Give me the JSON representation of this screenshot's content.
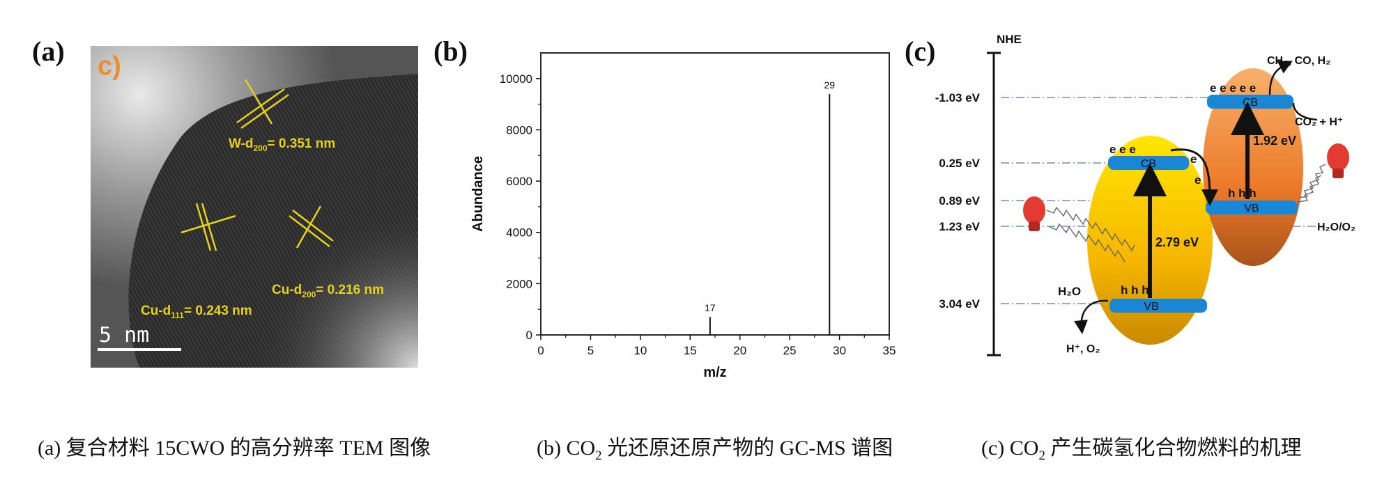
{
  "panels": {
    "a": {
      "letter": "(a)",
      "inset_letter": "c)",
      "annotations": {
        "w_prefix": "W-d",
        "w_sub": "200",
        "w_suffix": "= 0.351 nm",
        "cu111_prefix": "Cu-d",
        "cu111_sub": "111",
        "cu111_suffix": "= 0.243 nm",
        "cu200_prefix": "Cu-d",
        "cu200_sub": "200",
        "cu200_suffix": "= 0.216 nm"
      },
      "scale_bar": "5 nm"
    },
    "b": {
      "letter": "(b)"
    },
    "c": {
      "letter": "(c)",
      "axis_label": "NHE",
      "levels": [
        "-1.03 eV",
        "0.25 eV",
        "0.89 eV",
        "1.23 eV",
        "3.04 eV"
      ],
      "redox_label": "H₂O/O₂",
      "left": {
        "cb": "CB",
        "vb": "VB",
        "gap": "2.79 eV",
        "electrons": "e e e",
        "holes": "h h h"
      },
      "right": {
        "cb": "CB",
        "vb": "VB",
        "gap": "1.92 eV",
        "electrons": "e e e e e",
        "holes": "h h h"
      },
      "transfer_e": "e",
      "products": "CH₄, CO, H₂",
      "reactants": "CO₂ + H⁺",
      "h2o": "H₂O",
      "oxidation_products": "H⁺, O₂"
    }
  },
  "chart_data": {
    "type": "bar",
    "xlabel": "m/z",
    "ylabel": "Abundance",
    "xlim": [
      0,
      35
    ],
    "ylim": [
      0,
      11000
    ],
    "xticks": [
      0,
      5,
      10,
      15,
      20,
      25,
      30,
      35
    ],
    "yticks": [
      0,
      2000,
      4000,
      6000,
      8000,
      10000
    ],
    "peaks": [
      {
        "x": 17,
        "y": 700,
        "label": "17"
      },
      {
        "x": 29,
        "y": 9400,
        "label": "29"
      }
    ]
  },
  "captions": {
    "a": "(a)  复合材料 15CWO 的高分辨率 TEM 图像",
    "b_pre": "(b) CO",
    "b_sub": "2",
    "b_post": " 光还原还原产物的 GC-MS 谱图",
    "c_pre": "(c) CO",
    "c_sub": "2",
    "c_post": " 产生碳氢化合物燃料的机理"
  }
}
